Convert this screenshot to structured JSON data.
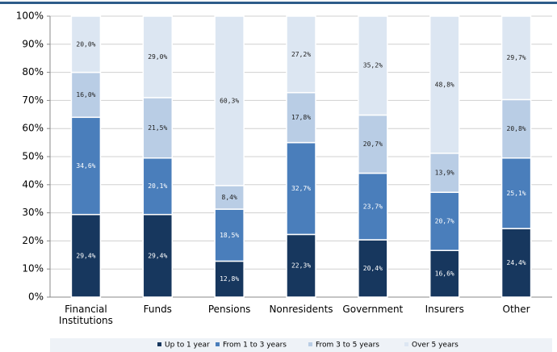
{
  "chart_data": {
    "type": "stacked_bar",
    "categories": [
      "Financial Institutions",
      "Funds",
      "Pensions",
      "Nonresidents",
      "Government",
      "Insurers",
      "Other"
    ],
    "series": [
      {
        "name": "Up to 1 year",
        "color": "#17375e",
        "values": [
          29.4,
          29.4,
          12.8,
          22.3,
          20.4,
          16.6,
          24.4
        ],
        "value_labels": [
          "29,4%",
          "29,4%",
          "12,8%",
          "22,3%",
          "20,4%",
          "16,6%",
          "24,4%"
        ]
      },
      {
        "name": "From 1 to 3 years",
        "color": "#4a7ebb",
        "values": [
          34.6,
          20.1,
          18.5,
          32.7,
          23.7,
          20.7,
          25.1
        ],
        "value_labels": [
          "34,6%",
          "20,1%",
          "18,5%",
          "32,7%",
          "23,7%",
          "20,7%",
          "25,1%"
        ]
      },
      {
        "name": "From 3 to 5 years",
        "color": "#b9cde5",
        "values": [
          16.0,
          21.5,
          8.4,
          17.8,
          20.7,
          13.9,
          20.8
        ],
        "value_labels": [
          "16,0%",
          "21,5%",
          "8,4%",
          "17,8%",
          "20,7%",
          "13,9%",
          "20,8%"
        ]
      },
      {
        "name": "Over 5 years",
        "color": "#dce6f2",
        "values": [
          20.0,
          29.0,
          60.3,
          27.2,
          35.2,
          48.8,
          29.7
        ],
        "value_labels": [
          "20,0%",
          "29,0%",
          "60,3%",
          "27,2%",
          "35,2%",
          "48,8%",
          "29,7%"
        ]
      }
    ],
    "ylim": [
      0,
      100
    ],
    "yticks": [
      {
        "value": 0,
        "label": "0%"
      },
      {
        "value": 10,
        "label": "10%"
      },
      {
        "value": 20,
        "label": "20%"
      },
      {
        "value": 30,
        "label": "30%"
      },
      {
        "value": 40,
        "label": "40%"
      },
      {
        "value": 50,
        "label": "50%"
      },
      {
        "value": 60,
        "label": "60%"
      },
      {
        "value": 70,
        "label": "70%"
      },
      {
        "value": 80,
        "label": "80%"
      },
      {
        "value": 90,
        "label": "90%"
      },
      {
        "value": 100,
        "label": "100%"
      }
    ],
    "grid": true
  }
}
